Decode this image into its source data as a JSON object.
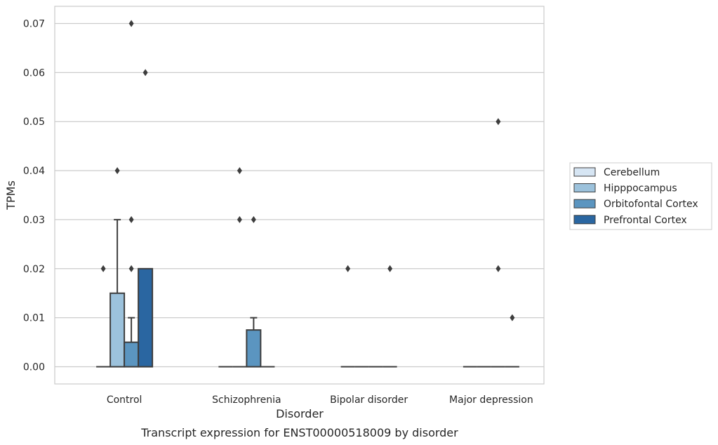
{
  "chart_data": {
    "type": "box",
    "title": "",
    "caption": "Transcript expression for ENST00000518009 by disorder",
    "xlabel": "Disorder",
    "ylabel": "TPMs",
    "ylim": [
      -0.0035,
      0.0735
    ],
    "yticks": [
      0.0,
      0.01,
      0.02,
      0.03,
      0.04,
      0.05,
      0.06,
      0.07
    ],
    "ytick_labels": [
      "0.00",
      "0.01",
      "0.02",
      "0.03",
      "0.04",
      "0.05",
      "0.06",
      "0.07"
    ],
    "grid": "horizontal",
    "legend_position": "right",
    "categories": [
      "Control",
      "Schizophrenia",
      "Bipolar disorder",
      "Major depression"
    ],
    "series": [
      {
        "name": "Cerebellum",
        "color": "#d6e5f3",
        "boxes": [
          {
            "q1": 0,
            "median": 0,
            "q3": 0,
            "whisker_low": 0,
            "whisker_high": 0,
            "outliers": [
              0.02
            ]
          },
          {
            "q1": 0,
            "median": 0,
            "q3": 0,
            "whisker_low": 0,
            "whisker_high": 0,
            "outliers": []
          },
          {
            "q1": 0,
            "median": 0,
            "q3": 0,
            "whisker_low": 0,
            "whisker_high": 0,
            "outliers": [
              0.02
            ]
          },
          {
            "q1": 0,
            "median": 0,
            "q3": 0,
            "whisker_low": 0,
            "whisker_high": 0,
            "outliers": []
          }
        ]
      },
      {
        "name": "Hipppocampus",
        "color": "#9cc2dc",
        "boxes": [
          {
            "q1": 0,
            "median": 0,
            "q3": 0.015,
            "whisker_low": 0,
            "whisker_high": 0.03,
            "outliers": [
              0.04
            ]
          },
          {
            "q1": 0,
            "median": 0,
            "q3": 0,
            "whisker_low": 0,
            "whisker_high": 0,
            "outliers": [
              0.04,
              0.03
            ]
          },
          {
            "q1": 0,
            "median": 0,
            "q3": 0,
            "whisker_low": 0,
            "whisker_high": 0,
            "outliers": []
          },
          {
            "q1": 0,
            "median": 0,
            "q3": 0,
            "whisker_low": 0,
            "whisker_high": 0,
            "outliers": []
          }
        ]
      },
      {
        "name": "Orbitofontal Cortex",
        "color": "#5b95c0",
        "boxes": [
          {
            "q1": 0,
            "median": 0,
            "q3": 0.005,
            "whisker_low": 0,
            "whisker_high": 0.01,
            "outliers": [
              0.07,
              0.03,
              0.02
            ]
          },
          {
            "q1": 0,
            "median": 0,
            "q3": 0.0075,
            "whisker_low": 0,
            "whisker_high": 0.01,
            "outliers": [
              0.03
            ]
          },
          {
            "q1": 0,
            "median": 0,
            "q3": 0,
            "whisker_low": 0,
            "whisker_high": 0,
            "outliers": []
          },
          {
            "q1": 0,
            "median": 0,
            "q3": 0,
            "whisker_low": 0,
            "whisker_high": 0,
            "outliers": [
              0.05,
              0.02
            ]
          }
        ]
      },
      {
        "name": "Prefrontal Cortex",
        "color": "#2a66a1",
        "boxes": [
          {
            "q1": 0,
            "median": 0,
            "q3": 0.02,
            "whisker_low": 0,
            "whisker_high": 0.02,
            "outliers": [
              0.06
            ]
          },
          {
            "q1": 0,
            "median": 0,
            "q3": 0,
            "whisker_low": 0,
            "whisker_high": 0,
            "outliers": []
          },
          {
            "q1": 0,
            "median": 0,
            "q3": 0,
            "whisker_low": 0,
            "whisker_high": 0,
            "outliers": [
              0.02
            ]
          },
          {
            "q1": 0,
            "median": 0,
            "q3": 0,
            "whisker_low": 0,
            "whisker_high": 0,
            "outliers": [
              0.01
            ]
          }
        ]
      }
    ]
  }
}
